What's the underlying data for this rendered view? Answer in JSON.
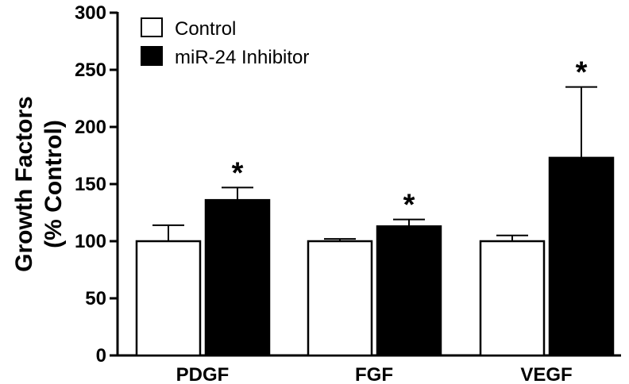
{
  "chart_data": {
    "type": "bar",
    "title": "",
    "xlabel": "",
    "ylabel_lines": [
      "Growth Factors",
      "(% Control)"
    ],
    "ylim": [
      0,
      300
    ],
    "yticks": [
      0,
      50,
      100,
      150,
      200,
      250,
      300
    ],
    "categories": [
      "PDGF",
      "FGF",
      "VEGF"
    ],
    "series": [
      {
        "name": "Control",
        "fill": "#ffffff",
        "values": [
          100,
          100,
          100
        ],
        "errors": [
          14,
          2,
          5
        ],
        "significance": [
          "",
          "",
          ""
        ]
      },
      {
        "name": "miR-24 Inhibitor",
        "fill": "#000000",
        "values": [
          136,
          113,
          173
        ],
        "errors": [
          11,
          6,
          62
        ],
        "significance": [
          "*",
          "*",
          "*"
        ]
      }
    ],
    "legend": "top-left",
    "grid": false
  }
}
